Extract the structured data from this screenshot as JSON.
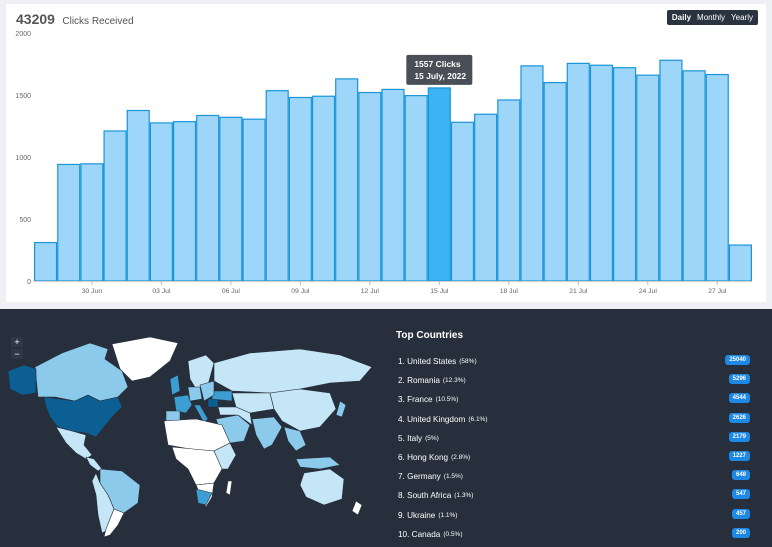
{
  "header": {
    "total": "43209",
    "total_label": "Clicks Received"
  },
  "range_buttons": [
    {
      "label": "Daily",
      "active": true
    },
    {
      "label": "Monthly",
      "active": false
    },
    {
      "label": "Yearly",
      "active": false
    }
  ],
  "tooltip": {
    "line1": "1557 Clicks",
    "line2": "15 July, 2022"
  },
  "chart_data": {
    "type": "bar",
    "title": "",
    "xlabel": "",
    "ylabel": "",
    "ylim": [
      0,
      2000
    ],
    "yticks": [
      0,
      500,
      1000,
      1500,
      2000
    ],
    "grid": false,
    "colors": {
      "bar": "#9ed6f9",
      "bar_edge": "#1a95d8",
      "highlight": "#3cb4f4"
    },
    "highlight_date": "15 Jul",
    "x_tick_labels": [
      "30 Jun",
      "03 Jul",
      "06 Jul",
      "09 Jul",
      "12 Jul",
      "15 Jul",
      "18 Jul",
      "21 Jul",
      "24 Jul",
      "27 Jul"
    ],
    "categories": [
      "28 Jun",
      "29 Jun",
      "30 Jun",
      "01 Jul",
      "02 Jul",
      "03 Jul",
      "04 Jul",
      "05 Jul",
      "06 Jul",
      "07 Jul",
      "08 Jul",
      "09 Jul",
      "10 Jul",
      "11 Jul",
      "12 Jul",
      "13 Jul",
      "14 Jul",
      "15 Jul",
      "16 Jul",
      "17 Jul",
      "18 Jul",
      "19 Jul",
      "20 Jul",
      "21 Jul",
      "22 Jul",
      "23 Jul",
      "24 Jul",
      "25 Jul",
      "26 Jul",
      "27 Jul",
      "28 Jul"
    ],
    "values": [
      310,
      940,
      945,
      1210,
      1375,
      1275,
      1285,
      1335,
      1320,
      1305,
      1535,
      1480,
      1490,
      1630,
      1520,
      1545,
      1495,
      1557,
      1280,
      1345,
      1460,
      1735,
      1600,
      1755,
      1740,
      1720,
      1660,
      1780,
      1695,
      1665,
      290
    ]
  },
  "map": {
    "zoom_in": "+",
    "zoom_out": "−",
    "colors": {
      "background": "#262f3b",
      "top": "#0b5f93",
      "mid": "#3d9ed4",
      "light": "#8ccaeb",
      "pale": "#c4e6f7",
      "none": "#ffffff"
    }
  },
  "top_countries": {
    "title": "Top Countries",
    "items": [
      {
        "name": "1. United States",
        "pct": "(58%)",
        "count": "25040"
      },
      {
        "name": "2. Romania",
        "pct": "(12.3%)",
        "count": "5296"
      },
      {
        "name": "3. France",
        "pct": "(10.5%)",
        "count": "4544"
      },
      {
        "name": "4. United Kingdom",
        "pct": "(6.1%)",
        "count": "2626"
      },
      {
        "name": "5. Italy",
        "pct": "(5%)",
        "count": "2179"
      },
      {
        "name": "6. Hong Kong",
        "pct": "(2.8%)",
        "count": "1227"
      },
      {
        "name": "7. Germany",
        "pct": "(1.5%)",
        "count": "648"
      },
      {
        "name": "8. South Africa",
        "pct": "(1.3%)",
        "count": "547"
      },
      {
        "name": "9. Ukraine",
        "pct": "(1.1%)",
        "count": "457"
      },
      {
        "name": "10. Canada",
        "pct": "(0.5%)",
        "count": "200"
      }
    ]
  }
}
